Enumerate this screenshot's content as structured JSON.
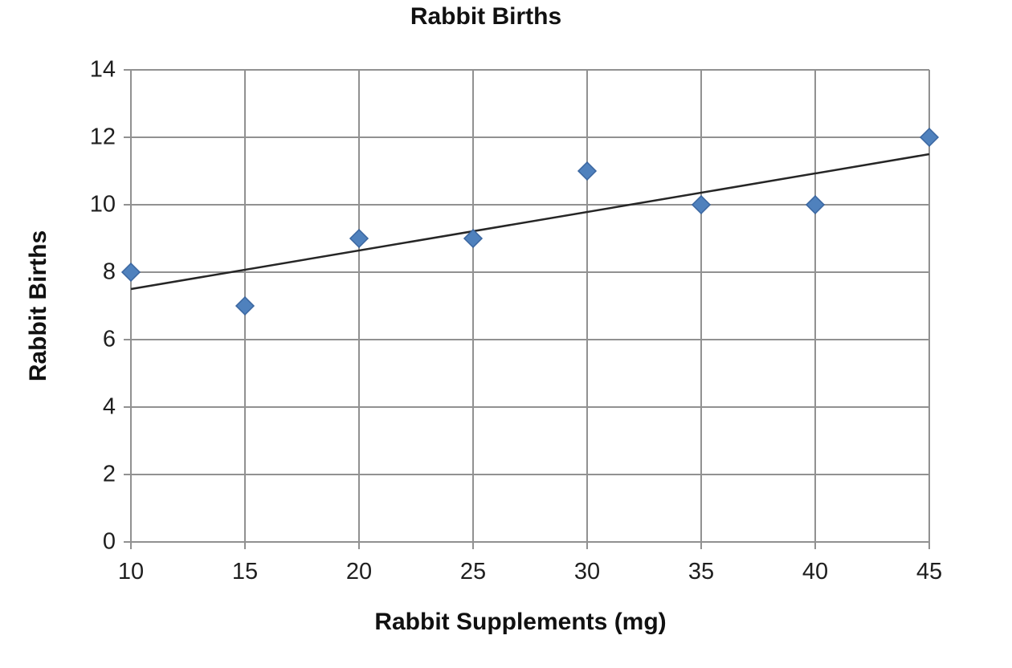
{
  "chart_data": {
    "type": "scatter",
    "title": "Rabbit Births",
    "xlabel": "Rabbit Supplements (mg)",
    "ylabel": "Rabbit Births",
    "x": [
      10,
      15,
      20,
      25,
      30,
      35,
      40,
      45
    ],
    "y": [
      8,
      7,
      9,
      9,
      11,
      10,
      10,
      12
    ],
    "series_name": "Rabbit Births",
    "xlim": [
      10,
      45
    ],
    "ylim": [
      0,
      14
    ],
    "xticks": [
      10,
      15,
      20,
      25,
      30,
      35,
      40,
      45
    ],
    "yticks": [
      0,
      2,
      4,
      6,
      8,
      10,
      12,
      14
    ],
    "grid": true,
    "legend": false,
    "marker_shape": "diamond",
    "trendline": {
      "x1": 10,
      "y1": 7.5,
      "x2": 45,
      "y2": 11.5
    },
    "colors": {
      "marker": "#4f81bd",
      "marker_border": "#3a66a0",
      "trendline": "#262626",
      "grid": "#919191",
      "text": "#1f1f1f"
    }
  }
}
